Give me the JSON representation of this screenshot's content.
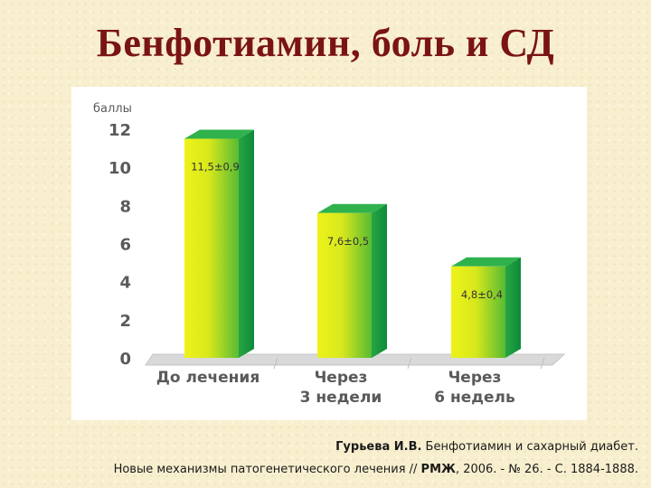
{
  "slide": {
    "title": "Бенфотиамин, боль и СД"
  },
  "citation": {
    "author": "Гурьева И.В.",
    "line1_rest": " Бенфотиамин и сахарный диабет.",
    "line2_plain": "Новые механизмы патогенетического лечения // ",
    "line2_bold": "РМЖ",
    "line2_tail": ", 2006. - № 26. - С. 1884-1888."
  },
  "chart_data": {
    "type": "bar",
    "title": "",
    "ylabel": "баллы",
    "xlabel": "",
    "ylim": [
      0,
      12
    ],
    "yticks": [
      "0",
      "2",
      "4",
      "6",
      "8",
      "10",
      "12"
    ],
    "grid": false,
    "style": "3d",
    "categories": [
      [
        "До лечения"
      ],
      [
        "Через",
        "3 недели"
      ],
      [
        "Через",
        "6 недель"
      ]
    ],
    "values": [
      11.5,
      7.6,
      4.8
    ],
    "value_labels": [
      "11,5±0,9",
      "7,6±0,5",
      "4,8±0,4"
    ],
    "colors": {
      "bar_light": "#eef21a",
      "bar_dark": "#22a845",
      "bar_top": "#2fb24c",
      "bar_side": "#0f8a3c",
      "axis_text": "#5a5a5a",
      "floor": "#d9d9d9"
    }
  }
}
